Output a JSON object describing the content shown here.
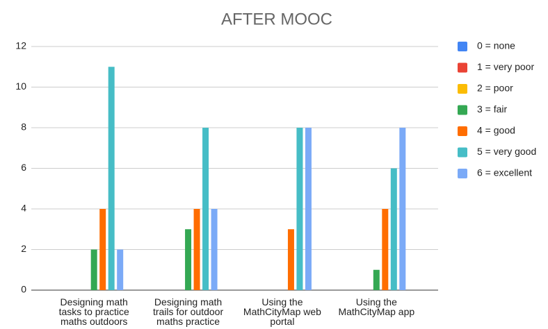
{
  "chart_data": {
    "type": "bar",
    "title": "AFTER MOOC",
    "categories": [
      "Designing math tasks to practice maths outdoors",
      "Designing math trails for outdoor maths practice",
      "Using the MathCityMap web portal",
      "Using the MathCityMap app"
    ],
    "series": [
      {
        "name": "0 = none",
        "color": "#4285f4",
        "values": [
          0,
          0,
          0,
          0
        ]
      },
      {
        "name": "1 = very poor",
        "color": "#ea4335",
        "values": [
          0,
          0,
          0,
          0
        ]
      },
      {
        "name": "2 = poor",
        "color": "#fbbc04",
        "values": [
          0,
          0,
          0,
          0
        ]
      },
      {
        "name": "3 = fair",
        "color": "#34a853",
        "values": [
          2,
          3,
          0,
          1
        ]
      },
      {
        "name": "4 = good",
        "color": "#ff6d01",
        "values": [
          4,
          4,
          3,
          4
        ]
      },
      {
        "name": "5 = very good",
        "color": "#46bdc6",
        "values": [
          11,
          8,
          8,
          6
        ]
      },
      {
        "name": "6 = excellent",
        "color": "#7baaf7",
        "values": [
          2,
          4,
          8,
          8
        ]
      }
    ],
    "ylim": [
      0,
      12
    ],
    "yticks": [
      0,
      2,
      4,
      6,
      8,
      10,
      12
    ],
    "grid": true,
    "legend": "right"
  }
}
